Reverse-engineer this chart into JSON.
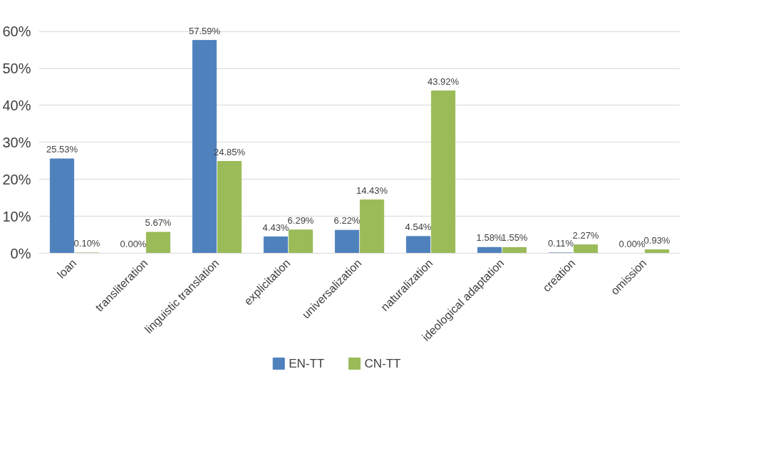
{
  "chart_data": {
    "type": "bar",
    "categories": [
      "loan",
      "transliteration",
      "linguistic translation",
      "explicitation",
      "universalization",
      "naturalization",
      "ideological adaptation",
      "creation",
      "omission"
    ],
    "series": [
      {
        "name": "EN-TT",
        "color": "#4f81bd",
        "values": [
          25.53,
          0.0,
          57.59,
          4.43,
          6.22,
          4.54,
          1.58,
          0.11,
          0.0
        ],
        "value_labels": [
          "25.53%",
          "0.00%",
          "57.59%",
          "4.43%",
          "6.22%",
          "4.54%",
          "1.58%",
          "0.11%",
          "0.00%"
        ]
      },
      {
        "name": "CN-TT",
        "color": "#9bbb59",
        "values": [
          0.1,
          5.67,
          24.85,
          6.29,
          14.43,
          43.92,
          1.55,
          2.27,
          0.93
        ],
        "value_labels": [
          "0.10%",
          "5.67%",
          "24.85%",
          "6.29%",
          "14.43%",
          "43.92%",
          "1.55%",
          "2.27%",
          "0.93%"
        ]
      }
    ],
    "ylim": [
      0,
      60
    ],
    "yticks": [
      {
        "value": 0,
        "label": "0%"
      },
      {
        "value": 10,
        "label": "10%"
      },
      {
        "value": 20,
        "label": "20%"
      },
      {
        "value": 30,
        "label": "30%"
      },
      {
        "value": 40,
        "label": "40%"
      },
      {
        "value": 50,
        "label": "50%"
      },
      {
        "value": 60,
        "label": "60%"
      }
    ],
    "grid": "y",
    "legend": "bottom"
  }
}
